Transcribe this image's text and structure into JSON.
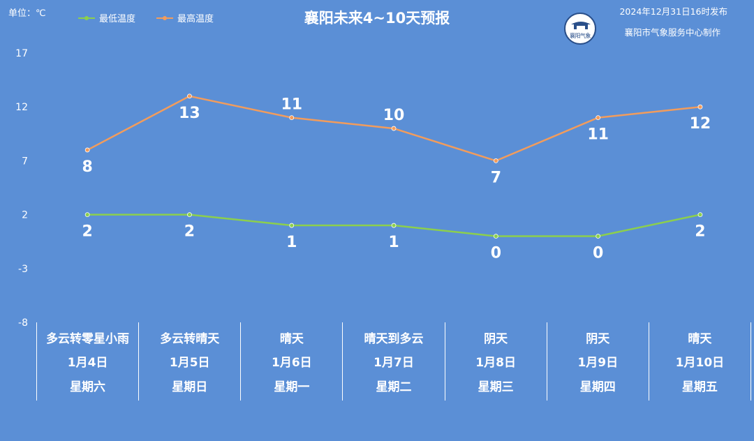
{
  "header": {
    "unit": "单位：℃",
    "title": "襄阳未来4~10天预报",
    "publish_time": "2024年12月31日16时发布",
    "maker": "襄阳市气象服务中心制作",
    "logo_text": "襄阳气象"
  },
  "colors": {
    "low": "#8ccf4d",
    "high": "#f29c5c",
    "background": "#5b8fd6",
    "grid": "#ffffff"
  },
  "chart_data": {
    "type": "line",
    "title": "襄阳未来4~10天预报",
    "ylabel": "单位：℃",
    "ylim": [
      -8,
      17
    ],
    "yticks": [
      17,
      12,
      7,
      2,
      -3,
      -8
    ],
    "legend_position": "top-left",
    "categories": [
      "1月4日",
      "1月5日",
      "1月6日",
      "1月7日",
      "1月8日",
      "1月9日",
      "1月10日"
    ],
    "series": [
      {
        "name": "最低温度",
        "key": "low",
        "values": [
          2,
          2,
          1,
          1,
          0,
          0,
          2
        ]
      },
      {
        "name": "最高温度",
        "key": "high",
        "values": [
          8,
          13,
          11,
          10,
          7,
          11,
          12
        ]
      }
    ]
  },
  "days": [
    {
      "weather": "多云转零星小雨",
      "date": "1月4日",
      "weekday": "星期六"
    },
    {
      "weather": "多云转晴天",
      "date": "1月5日",
      "weekday": "星期日"
    },
    {
      "weather": "晴天",
      "date": "1月6日",
      "weekday": "星期一"
    },
    {
      "weather": "晴天到多云",
      "date": "1月7日",
      "weekday": "星期二"
    },
    {
      "weather": "阴天",
      "date": "1月8日",
      "weekday": "星期三"
    },
    {
      "weather": "阴天",
      "date": "1月9日",
      "weekday": "星期四"
    },
    {
      "weather": "晴天",
      "date": "1月10日",
      "weekday": "星期五"
    }
  ]
}
